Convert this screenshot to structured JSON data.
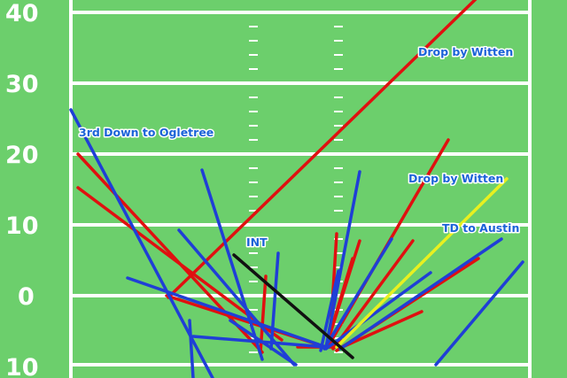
{
  "colors": {
    "field": "#6ccf6c",
    "line": "#ffffff",
    "incomplete": "#e01010",
    "complete": "#1f3fd6",
    "touchdown": "#e8f020",
    "interception": "#111111",
    "label": "#1b63d8"
  },
  "field": {
    "yard_labels": [
      "40",
      "30",
      "20",
      "10",
      "0",
      "10"
    ]
  },
  "annotations": [
    {
      "id": "drop-witten-1",
      "text": "Drop by Witten"
    },
    {
      "id": "third-down-ogletree",
      "text": "3rd Down to Ogletree"
    },
    {
      "id": "drop-witten-2",
      "text": "Drop by Witten"
    },
    {
      "id": "td-austin",
      "text": "TD to Austin"
    },
    {
      "id": "int",
      "text": "INT"
    }
  ]
}
